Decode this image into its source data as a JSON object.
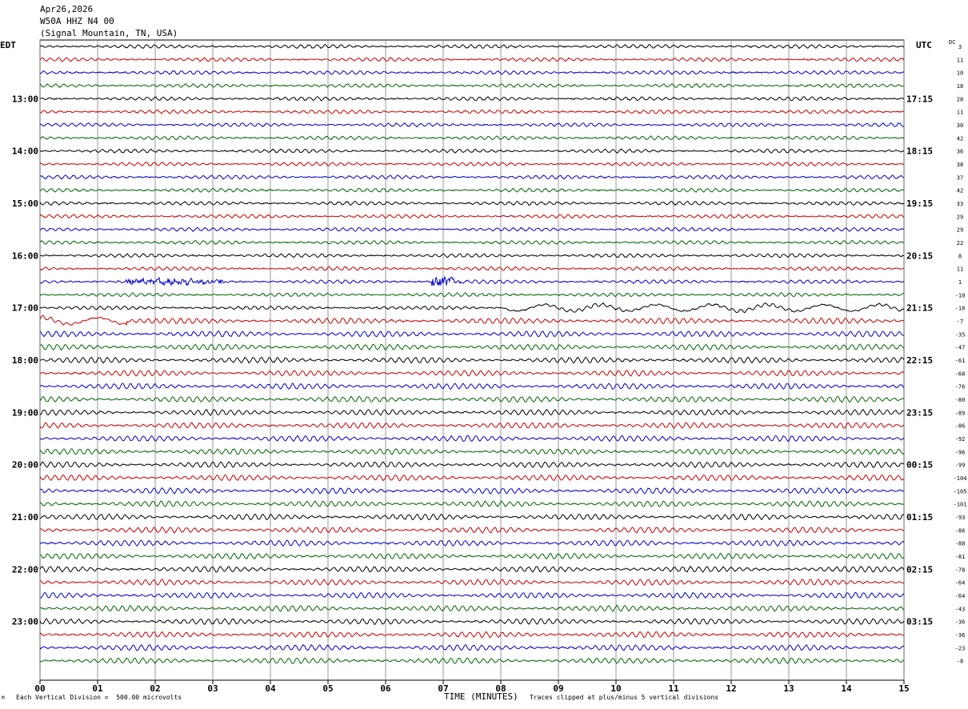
{
  "header": {
    "date": "Apr26,2026",
    "station": "W50A HHZ N4 00",
    "location": "(Signal Mountain, TN, USA)"
  },
  "left_tz": "EDT",
  "right_tz": "UTC",
  "dc_label": "DC",
  "footer": {
    "scale_note": "Each Vertical Division =  500.00 microvolts",
    "clip_note": "Traces clipped at plus/minus 5 vertical divisions",
    "corner_mark": "M"
  },
  "colors": {
    "trace_cycle": [
      "#000000",
      "#cc0000",
      "#0000cc",
      "#006600"
    ],
    "grid": "#808080"
  },
  "chart_data": {
    "type": "line",
    "title": "W50A HHZ N4 00",
    "xlabel": "TIME (MINUTES)",
    "ylabel": "",
    "xlim": [
      0,
      15
    ],
    "x_ticks": [
      "00",
      "01",
      "02",
      "03",
      "04",
      "05",
      "06",
      "07",
      "08",
      "09",
      "10",
      "11",
      "12",
      "13",
      "14",
      "15"
    ],
    "rows_per_hour": 4,
    "row_minutes": 15,
    "left_hour_labels": [
      "13:00",
      "14:00",
      "15:00",
      "16:00",
      "17:00",
      "18:00",
      "19:00",
      "20:00",
      "21:00",
      "22:00",
      "23:00"
    ],
    "right_hour_labels": [
      "17:15",
      "18:15",
      "19:15",
      "20:15",
      "21:15",
      "22:15",
      "23:15",
      "00:15",
      "01:15",
      "02:15",
      "03:15"
    ],
    "dc_offsets": [
      3,
      11,
      10,
      18,
      28,
      11,
      30,
      42,
      36,
      38,
      37,
      42,
      33,
      29,
      29,
      22,
      8,
      11,
      1,
      -10,
      -18,
      -7,
      -35,
      -47,
      -61,
      -68,
      -76,
      -80,
      -89,
      -86,
      -92,
      -96,
      -99,
      -104,
      -105,
      -101,
      -93,
      -86,
      -88,
      -81,
      -78,
      -64,
      -64,
      -43,
      -36,
      -36,
      -23,
      -8
    ],
    "events": [
      {
        "row": 18,
        "minute_start": 1.5,
        "minute_end": 3.2,
        "note": "burst"
      },
      {
        "row": 18,
        "minute_start": 6.8,
        "minute_end": 7.3,
        "note": "spike"
      },
      {
        "row": 20,
        "minute_start": 8.0,
        "minute_end": 15.0,
        "note": "long-period"
      },
      {
        "row": 21,
        "minute_start": 0.0,
        "minute_end": 1.5,
        "note": "long-period"
      }
    ]
  }
}
